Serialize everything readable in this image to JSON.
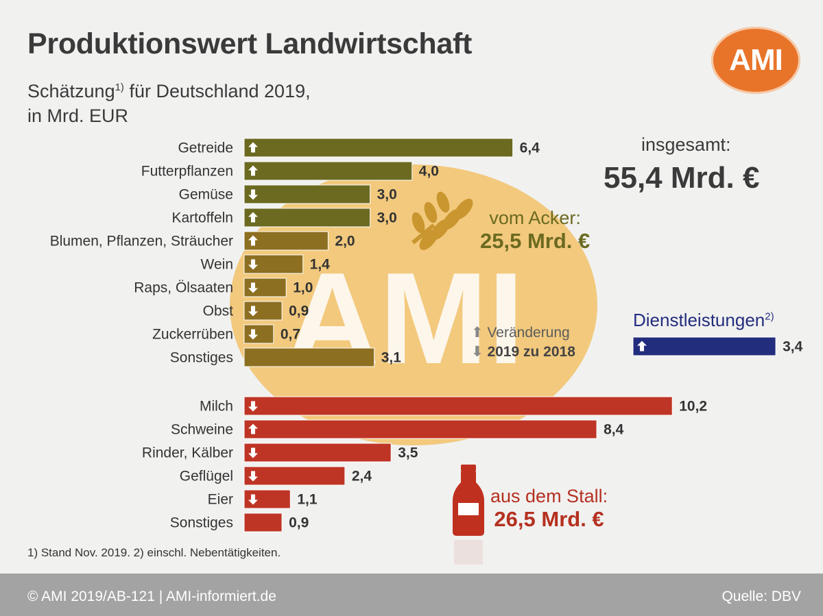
{
  "header": {
    "title": "Produktionswert Landwirtschaft",
    "subtitle_line1": "Schätzung",
    "subtitle_sup": "1)",
    "subtitle_rest": " für Deutschland 2019,",
    "subtitle_line2": "in Mrd. EUR"
  },
  "logo": {
    "text": "AMI"
  },
  "watermark": {
    "text": "AMI"
  },
  "total": {
    "label": "insgesamt:",
    "value": "55,4 Mrd. €"
  },
  "groups": {
    "acker": {
      "label": "vom Acker:",
      "value": "25,5 Mrd. €"
    },
    "stall": {
      "label": "aus dem Stall:",
      "value": "26,5 Mrd. €"
    },
    "dienst": {
      "label": "Dienstleistungen",
      "sup": "2)"
    }
  },
  "change_legend": {
    "up": "Veränderung",
    "down": "2019 zu 2018"
  },
  "footnote": "1) Stand Nov. 2019. 2) einschl. Nebentätigkeiten.",
  "footer": {
    "left": "© AMI 2019/AB-121 | AMI-informiert.de",
    "right": "Quelle: DBV"
  },
  "colors": {
    "plant": "#6b6a20",
    "plant_light": "#8d6f22",
    "animal": "#bf3525",
    "service": "#232d7d",
    "watermark": "#f3a71f"
  },
  "chart_data": {
    "type": "bar",
    "orientation": "horizontal",
    "title": "Produktionswert Landwirtschaft",
    "unit": "Mrd. EUR",
    "series": [
      {
        "name": "vom Acker",
        "categories": [
          "Getreide",
          "Futterpflanzen",
          "Gemüse",
          "Kartoffeln",
          "Blumen, Pflanzen, Sträucher",
          "Wein",
          "Raps, Ölsaaten",
          "Obst",
          "Zuckerrüben",
          "Sonstiges"
        ],
        "values": [
          6.4,
          4.0,
          3.0,
          3.0,
          2.0,
          1.4,
          1.0,
          0.9,
          0.7,
          3.1
        ],
        "labels": [
          "6,4",
          "4,0",
          "3,0",
          "3,0",
          "2,0",
          "1,4",
          "1,0",
          "0,9",
          "0,7",
          "3,1"
        ],
        "change": [
          "up",
          "up",
          "down",
          "up",
          "up",
          "down",
          "down",
          "down",
          "down",
          "none"
        ]
      },
      {
        "name": "aus dem Stall",
        "categories": [
          "Milch",
          "Schweine",
          "Rinder, Kälber",
          "Geflügel",
          "Eier",
          "Sonstiges"
        ],
        "values": [
          10.2,
          8.4,
          3.5,
          2.4,
          1.1,
          0.9
        ],
        "labels": [
          "10,2",
          "8,4",
          "3,5",
          "2,4",
          "1,1",
          "0,9"
        ],
        "change": [
          "down",
          "up",
          "down",
          "down",
          "down",
          "none"
        ]
      },
      {
        "name": "Dienstleistungen",
        "categories": [
          "Dienstleistungen"
        ],
        "values": [
          3.4
        ],
        "labels": [
          "3,4"
        ],
        "change": [
          "up"
        ]
      }
    ]
  }
}
